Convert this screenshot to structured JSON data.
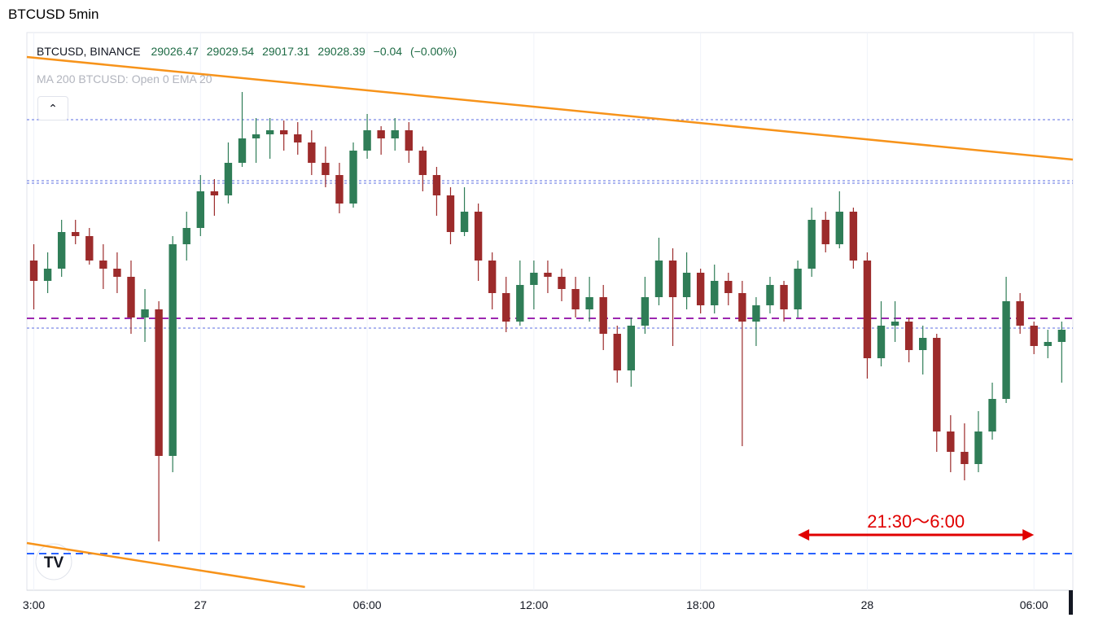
{
  "chart_data": {
    "type": "candlestick",
    "title": "BTCUSD 5min",
    "symbol": "BTCUSD, BINANCE",
    "ohlc": [
      29026.47,
      29029.54,
      29017.31,
      29028.39
    ],
    "change": {
      "value": -0.04,
      "label": "−0.04"
    },
    "change_pct": {
      "value": 0,
      "label": "(−0.00%)"
    },
    "indicator": "MA 200 BTCUSD: Open 0 EMA 20",
    "up_color": "#2f7d57",
    "down_color": "#9c2b2b",
    "xlim": [
      17.75,
      55.4
    ],
    "ylim": [
      28700,
      29375
    ],
    "xticks": [
      {
        "value": 18,
        "label": "3:00"
      },
      {
        "value": 24,
        "label": "27"
      },
      {
        "value": 30,
        "label": "06:00"
      },
      {
        "value": 36,
        "label": "12:00"
      },
      {
        "value": 42,
        "label": "18:00"
      },
      {
        "value": 48,
        "label": "28"
      },
      {
        "value": 54,
        "label": "06:00"
      }
    ],
    "grid": true,
    "x": [
      18,
      18.5,
      19,
      19.5,
      20,
      20.5,
      21,
      21.5,
      22,
      22.5,
      23,
      23.5,
      24,
      24.5,
      25,
      25.5,
      26,
      26.5,
      27,
      27.5,
      28,
      28.5,
      29,
      29.5,
      30,
      30.5,
      31,
      31.5,
      32,
      32.5,
      33,
      33.5,
      34,
      34.5,
      35,
      35.5,
      36,
      36.5,
      37,
      37.5,
      38,
      38.5,
      39,
      39.5,
      40,
      40.5,
      41,
      41.5,
      42,
      42.5,
      43,
      43.5,
      44,
      44.5,
      45,
      45.5,
      46,
      46.5,
      47,
      47.5,
      48,
      48.5,
      49,
      49.5,
      50,
      50.5,
      51,
      51.5,
      52,
      52.5,
      53,
      53.5,
      54,
      54.5,
      55
    ],
    "open": [
      29105,
      29080,
      29095,
      29140,
      29135,
      29105,
      29095,
      29085,
      29035,
      29045,
      28865,
      29125,
      29145,
      29190,
      29185,
      29225,
      29255,
      29260,
      29265,
      29260,
      29250,
      29225,
      29210,
      29175,
      29240,
      29265,
      29255,
      29265,
      29240,
      29210,
      29185,
      29140,
      29165,
      29105,
      29065,
      29030,
      29075,
      29090,
      29085,
      29070,
      29045,
      29060,
      29015,
      28970,
      29025,
      29060,
      29105,
      29060,
      29090,
      29050,
      29080,
      29065,
      29030,
      29050,
      29075,
      29045,
      29095,
      29155,
      29125,
      29165,
      29105,
      28985,
      29025,
      29030,
      28995,
      29010,
      28895,
      28870,
      28855,
      28895,
      28935,
      29055,
      29025,
      29000,
      29005
    ],
    "high": [
      29125,
      29115,
      29155,
      29155,
      29145,
      29125,
      29115,
      29105,
      29070,
      29055,
      29135,
      29165,
      29210,
      29205,
      29250,
      29312,
      29280,
      29280,
      29277,
      29275,
      29265,
      29245,
      29225,
      29250,
      29285,
      29270,
      29280,
      29275,
      29245,
      29220,
      29195,
      29195,
      29175,
      29115,
      29085,
      29105,
      29105,
      29105,
      29095,
      29085,
      29085,
      29075,
      29025,
      29035,
      29085,
      29133,
      29120,
      29115,
      29095,
      29100,
      29090,
      29080,
      29060,
      29085,
      29080,
      29105,
      29170,
      29165,
      29190,
      29170,
      29115,
      29055,
      29055,
      29035,
      29025,
      29015,
      28915,
      28905,
      28920,
      28955,
      29085,
      29065,
      29030,
      29020,
      29030
    ],
    "low": [
      29045,
      29065,
      29085,
      29125,
      29100,
      29070,
      29065,
      29015,
      29005,
      28760,
      28845,
      29105,
      29135,
      29160,
      29175,
      29220,
      29225,
      29230,
      29240,
      29235,
      29210,
      29195,
      29163,
      29170,
      29230,
      29235,
      29240,
      29225,
      29190,
      29160,
      29125,
      29135,
      29080,
      29045,
      29017,
      29025,
      29045,
      29065,
      29055,
      29035,
      29030,
      28995,
      28955,
      28950,
      29015,
      29050,
      29000,
      29045,
      29040,
      29040,
      29050,
      28877,
      29000,
      29040,
      29030,
      29035,
      29085,
      29115,
      29120,
      29095,
      28960,
      28975,
      29005,
      28980,
      28965,
      28870,
      28845,
      28835,
      28845,
      28885,
      28930,
      29015,
      28990,
      28985,
      28955
    ],
    "close": [
      29080,
      29095,
      29140,
      29135,
      29105,
      29095,
      29085,
      29035,
      29045,
      28865,
      29125,
      29145,
      29190,
      29185,
      29225,
      29255,
      29260,
      29265,
      29260,
      29250,
      29225,
      29210,
      29175,
      29240,
      29265,
      29255,
      29265,
      29240,
      29210,
      29185,
      29140,
      29165,
      29105,
      29065,
      29030,
      29075,
      29090,
      29085,
      29070,
      29045,
      29060,
      29015,
      28970,
      29025,
      29060,
      29105,
      29060,
      29090,
      29050,
      29080,
      29065,
      29030,
      29050,
      29075,
      29045,
      29095,
      29155,
      29125,
      29165,
      29105,
      28985,
      29025,
      29030,
      28995,
      29010,
      28895,
      28870,
      28855,
      28895,
      28935,
      29055,
      29025,
      29000,
      29005,
      29020
    ],
    "hlines": [
      {
        "value": 29278,
        "color": "#5b6ee1",
        "style": "dotted"
      },
      {
        "value": 29203,
        "color": "#5b6ee1",
        "style": "dotted"
      },
      {
        "value": 29200,
        "color": "#5b6ee1",
        "style": "dotted"
      },
      {
        "value": 29022,
        "color": "#5b6ee1",
        "style": "dotted"
      },
      {
        "value": 29034,
        "color": "#9c27b0",
        "style": "dashed"
      },
      {
        "value": 28745,
        "color": "#2962ff",
        "style": "dashed"
      }
    ],
    "trendlines": [
      {
        "x": [
          17.75,
          55.4
        ],
        "y": [
          29355,
          29229
        ],
        "color": "#f7931a"
      },
      {
        "x": [
          17.75,
          27.76
        ],
        "y": [
          28758,
          28704
        ],
        "color": "#f7931a"
      }
    ],
    "annotation": {
      "text": "21:30〜6:00",
      "x": [
        45.5,
        54
      ],
      "y": 28768,
      "color": "#e00000"
    }
  }
}
